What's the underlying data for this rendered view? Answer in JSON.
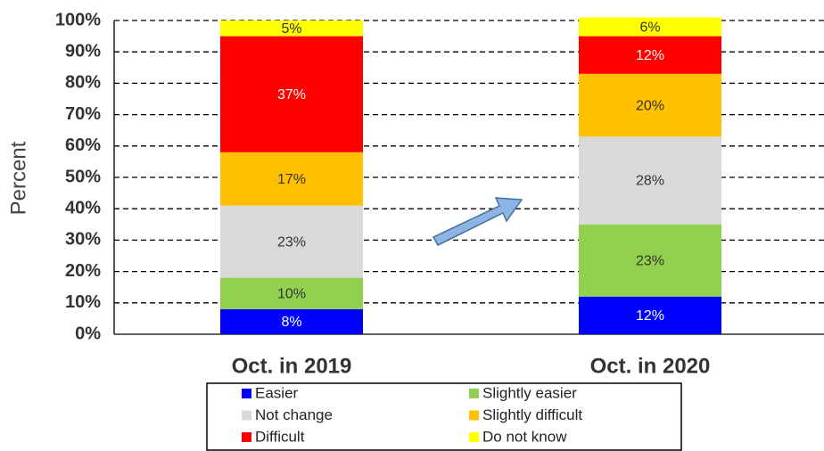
{
  "chart_data": {
    "type": "stacked_bar",
    "y_label": "Percent",
    "categories": [
      "Oct. in 2019",
      "Oct. in 2020"
    ],
    "series": [
      {
        "name": "Easier",
        "color": "#0000ff",
        "label_color": "#ffffff",
        "values": [
          8,
          12
        ],
        "value_labels": [
          "8%",
          "12%"
        ]
      },
      {
        "name": "Slightly easier",
        "color": "#92d050",
        "label_color": "#333333",
        "values": [
          10,
          23
        ],
        "value_labels": [
          "10%",
          "23%"
        ]
      },
      {
        "name": "Not change",
        "color": "#d9d9d9",
        "label_color": "#333333",
        "values": [
          23,
          28
        ],
        "value_labels": [
          "23%",
          "28%"
        ]
      },
      {
        "name": "Slightly difficult",
        "color": "#ffc000",
        "label_color": "#333333",
        "values": [
          17,
          20
        ],
        "value_labels": [
          "17%",
          "20%"
        ]
      },
      {
        "name": "Difficult",
        "color": "#ff0000",
        "label_color": "#ffffff",
        "values": [
          37,
          12
        ],
        "value_labels": [
          "37%",
          "12%"
        ]
      },
      {
        "name": "Do not know",
        "color": "#ffff00",
        "label_color": "#333333",
        "values": [
          5,
          6
        ],
        "value_labels": [
          "5%",
          "6%"
        ]
      }
    ],
    "ylim": [
      0,
      100
    ],
    "yticks": [
      {
        "value": 0,
        "label": "0%"
      },
      {
        "value": 10,
        "label": "10%"
      },
      {
        "value": 20,
        "label": "20%"
      },
      {
        "value": 30,
        "label": "30%"
      },
      {
        "value": 40,
        "label": "40%"
      },
      {
        "value": 50,
        "label": "50%"
      },
      {
        "value": 60,
        "label": "60%"
      },
      {
        "value": 70,
        "label": "70%"
      },
      {
        "value": 80,
        "label": "80%"
      },
      {
        "value": 90,
        "label": "90%"
      },
      {
        "value": 100,
        "label": "100%"
      }
    ],
    "grid": true
  }
}
